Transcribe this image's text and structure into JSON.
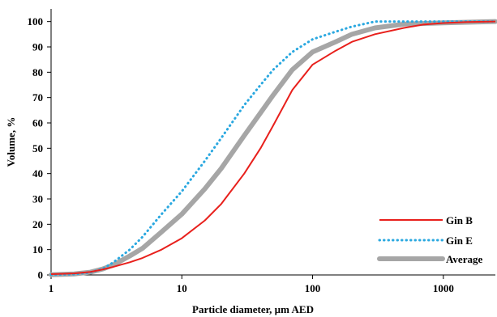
{
  "chart_data": {
    "type": "line",
    "xlabel": "Particle diameter, µm AED",
    "ylabel": "Volume, %",
    "xscale": "log",
    "xlim": [
      1,
      2500
    ],
    "ylim": [
      0,
      105
    ],
    "x_ticks": [
      1,
      10,
      100,
      1000
    ],
    "x_tick_labels": [
      "1",
      "10",
      "100",
      "1000"
    ],
    "y_ticks": [
      0,
      10,
      20,
      30,
      40,
      50,
      60,
      70,
      80,
      90,
      100
    ],
    "y_tick_labels": [
      "0",
      "10",
      "20",
      "30",
      "40",
      "50",
      "60",
      "70",
      "80",
      "90",
      "100"
    ],
    "grid": false,
    "legend_position": "bottom-right",
    "series": [
      {
        "name": "Gin B",
        "color": "#e8201c",
        "style": "solid",
        "x": [
          1,
          1.5,
          2,
          2.5,
          3,
          4,
          5,
          7,
          10,
          15,
          20,
          30,
          40,
          50,
          70,
          100,
          150,
          200,
          300,
          500,
          700,
          1000,
          1500,
          2500
        ],
        "y": [
          0.3,
          0.6,
          1.2,
          2.2,
          3.2,
          5.0,
          6.7,
          10.0,
          14.5,
          21.5,
          28,
          40,
          50,
          59,
          73,
          83,
          88.5,
          92,
          95,
          97.5,
          98.8,
          99.4,
          99.8,
          100
        ]
      },
      {
        "name": "Gin E",
        "color": "#2aa8e0",
        "style": "dotted",
        "x": [
          1,
          1.5,
          2,
          2.5,
          3,
          4,
          5,
          7,
          10,
          15,
          20,
          30,
          40,
          50,
          70,
          100,
          150,
          200,
          300,
          500,
          1000,
          2500
        ],
        "y": [
          0.1,
          0.3,
          1.0,
          2.5,
          5.0,
          10.0,
          15,
          24,
          33,
          45,
          54,
          67,
          75,
          81,
          88,
          93,
          96,
          98,
          100,
          100,
          100,
          100
        ]
      },
      {
        "name": "Average",
        "color": "#a6a6a6",
        "style": "solid-thick",
        "x": [
          1,
          1.5,
          2,
          2.5,
          3,
          4,
          5,
          7,
          10,
          15,
          20,
          30,
          40,
          50,
          70,
          100,
          150,
          200,
          300,
          500,
          1000,
          2500
        ],
        "y": [
          0.1,
          0.4,
          1.1,
          2.4,
          4.0,
          7.5,
          10.5,
          17,
          24,
          34,
          42,
          55,
          64,
          71,
          81,
          88,
          92,
          95,
          97.5,
          99,
          99.5,
          100
        ]
      }
    ]
  }
}
